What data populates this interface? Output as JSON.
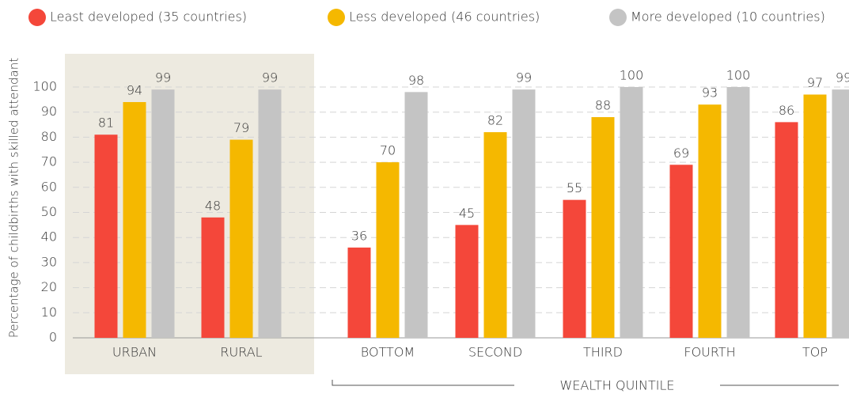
{
  "chart_data": {
    "type": "bar",
    "ylabel": "Percentage of childbirths with skilled attendant",
    "group_label": "WEALTH QUINTILE",
    "categories": [
      "URBAN",
      "RURAL",
      "BOTTOM",
      "SECOND",
      "THIRD",
      "FOURTH",
      "TOP"
    ],
    "series": [
      {
        "name": "Least developed (35 countries)",
        "color": "#f4473a",
        "values": [
          81,
          48,
          36,
          45,
          55,
          69,
          86
        ]
      },
      {
        "name": "Less developed (46 countries)",
        "color": "#f5b800",
        "values": [
          94,
          79,
          70,
          82,
          88,
          93,
          97
        ]
      },
      {
        "name": "More developed (10 countries)",
        "color": "#c4c4c4",
        "values": [
          99,
          99,
          98,
          99,
          100,
          100,
          99
        ]
      }
    ],
    "ylim": [
      0,
      100
    ],
    "yticks": [
      0,
      10,
      20,
      30,
      40,
      50,
      60,
      70,
      80,
      90,
      100
    ],
    "grid": true,
    "legend": "top"
  }
}
